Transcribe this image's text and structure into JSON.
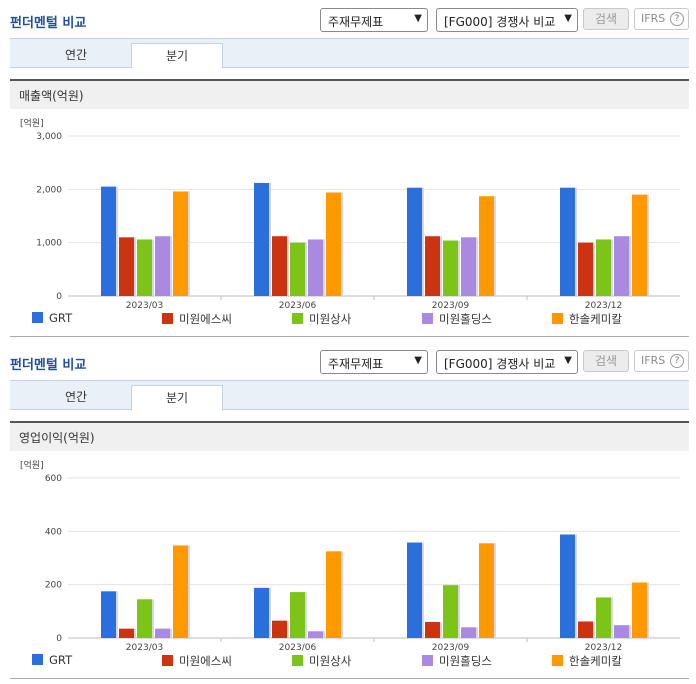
{
  "sections": [
    {
      "title": "펀더멘털 비교",
      "select_statement": "주재무제표",
      "select_compare": "[FG000] 경쟁사 비교",
      "search_label": "검색",
      "ifrs_label": "IFRS",
      "help_glyph": "?",
      "tabs": [
        "연간",
        "분기"
      ],
      "active_tab": "분기",
      "metric_label": "매출액(억원)",
      "unit_label": "[억원]",
      "chart_data": {
        "type": "bar",
        "categories": [
          "2023/03",
          "2023/06",
          "2023/09",
          "2023/12"
        ],
        "series": [
          {
            "name": "GRT",
            "color": "#2a6fdb",
            "values": [
              2050,
              2120,
              2030,
              2030
            ]
          },
          {
            "name": "미원에스씨",
            "color": "#cc3311",
            "values": [
              1100,
              1120,
              1120,
              1000
            ]
          },
          {
            "name": "미원상사",
            "color": "#7cc418",
            "values": [
              1060,
              1000,
              1040,
              1060
            ]
          },
          {
            "name": "미원홀딩스",
            "color": "#a98ae0",
            "values": [
              1120,
              1060,
              1100,
              1120
            ]
          },
          {
            "name": "한솔케미칼",
            "color": "#ff9900",
            "values": [
              1960,
              1940,
              1870,
              1900
            ]
          }
        ],
        "ylim": [
          0,
          3000
        ],
        "yticks": [
          "0",
          "1,000",
          "2,000",
          "3,000"
        ],
        "ytick_values": [
          0,
          1000,
          2000,
          3000
        ]
      }
    },
    {
      "title": "펀더멘털 비교",
      "select_statement": "주재무제표",
      "select_compare": "[FG000] 경쟁사 비교",
      "search_label": "검색",
      "ifrs_label": "IFRS",
      "help_glyph": "?",
      "tabs": [
        "연간",
        "분기"
      ],
      "active_tab": "분기",
      "metric_label": "영업이익(억원)",
      "unit_label": "[억원]",
      "chart_data": {
        "type": "bar",
        "categories": [
          "2023/03",
          "2023/06",
          "2023/09",
          "2023/12"
        ],
        "series": [
          {
            "name": "GRT",
            "color": "#2a6fdb",
            "values": [
              175,
              188,
              358,
              388
            ]
          },
          {
            "name": "미원에스씨",
            "color": "#cc3311",
            "values": [
              35,
              65,
              60,
              62
            ]
          },
          {
            "name": "미원상사",
            "color": "#7cc418",
            "values": [
              145,
              172,
              198,
              152
            ]
          },
          {
            "name": "미원홀딩스",
            "color": "#a98ae0",
            "values": [
              35,
              25,
              40,
              48
            ]
          },
          {
            "name": "한솔케미칼",
            "color": "#ff9900",
            "values": [
              347,
              325,
              355,
              208
            ]
          }
        ],
        "ylim": [
          0,
          600
        ],
        "yticks": [
          "0",
          "200",
          "400",
          "600"
        ],
        "ytick_values": [
          0,
          200,
          400,
          600
        ]
      }
    }
  ]
}
